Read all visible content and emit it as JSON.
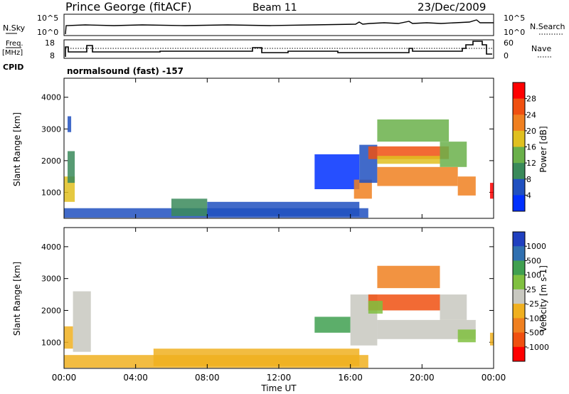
{
  "header": {
    "station": "Prince George (fitACF)",
    "beam": "Beam 11",
    "date": "23/Dec/2009"
  },
  "sky_panel": {
    "left_label": "N.Sky",
    "left_ticks": [
      "10^5",
      "10^0"
    ],
    "right_label": "N.Search",
    "right_ticks": [
      "10^5",
      "10^0"
    ]
  },
  "freq_panel": {
    "left_label_top": "Freq.",
    "left_label_bottom": "[MHz]",
    "left_ticks": [
      "18",
      "8"
    ],
    "right_label": "Nave",
    "right_ticks": [
      "60",
      "0"
    ],
    "cpid_label": "CPID",
    "cpid_text": "normalsound (fast) -157"
  },
  "chart_data": [
    {
      "type": "heatmap",
      "name": "power",
      "ylabel": "Slant Range [km]",
      "yticks": [
        1000,
        2000,
        3000,
        4000
      ],
      "ylim": [
        180,
        4600
      ],
      "xlim": [
        0,
        24
      ],
      "colorbar": {
        "label": "Power [dB]",
        "ticks": [
          "4",
          "8",
          "12",
          "16",
          "20",
          "24",
          "28"
        ],
        "colors": [
          "#0030ff",
          "#2050c0",
          "#3a8a5a",
          "#6ab04a",
          "#e0c020",
          "#f08020",
          "#f05010",
          "#ff0000"
        ]
      },
      "patches": [
        {
          "t0": 0.0,
          "t1": 0.6,
          "r0": 700,
          "r1": 1500,
          "level": 4
        },
        {
          "t0": 0.2,
          "t1": 0.6,
          "r0": 1300,
          "r1": 2300,
          "level": 2
        },
        {
          "t0": 0.2,
          "t1": 0.4,
          "r0": 2900,
          "r1": 3400,
          "level": 1
        },
        {
          "t0": 0.0,
          "t1": 17.0,
          "r0": 200,
          "r1": 500,
          "level": 1
        },
        {
          "t0": 6.0,
          "t1": 8.0,
          "r0": 250,
          "r1": 800,
          "level": 2
        },
        {
          "t0": 8.0,
          "t1": 16.5,
          "r0": 250,
          "r1": 700,
          "level": 1
        },
        {
          "t0": 14.0,
          "t1": 16.5,
          "r0": 1100,
          "r1": 2200,
          "level": 0
        },
        {
          "t0": 16.2,
          "t1": 17.2,
          "r0": 800,
          "r1": 1400,
          "level": 5
        },
        {
          "t0": 16.5,
          "t1": 17.5,
          "r0": 1300,
          "r1": 2500,
          "level": 1
        },
        {
          "t0": 17.0,
          "t1": 21.5,
          "r0": 2050,
          "r1": 2450,
          "level": 6
        },
        {
          "t0": 17.5,
          "t1": 21.0,
          "r0": 1900,
          "r1": 2150,
          "level": 4
        },
        {
          "t0": 17.5,
          "t1": 22.0,
          "r0": 1200,
          "r1": 1800,
          "level": 5
        },
        {
          "t0": 17.5,
          "t1": 21.5,
          "r0": 2600,
          "r1": 3300,
          "level": 3
        },
        {
          "t0": 21.0,
          "t1": 22.5,
          "r0": 1800,
          "r1": 2600,
          "level": 3
        },
        {
          "t0": 22.0,
          "t1": 23.0,
          "r0": 900,
          "r1": 1500,
          "level": 5
        },
        {
          "t0": 23.8,
          "t1": 24.0,
          "r0": 800,
          "r1": 1300,
          "level": 7
        }
      ]
    },
    {
      "type": "heatmap",
      "name": "velocity",
      "ylabel": "Slant Range [km]",
      "xlabel": "Time UT",
      "yticks": [
        1000,
        2000,
        3000,
        4000
      ],
      "ylim": [
        180,
        4600
      ],
      "xlim": [
        0,
        24
      ],
      "xticks": [
        "00:00",
        "04:00",
        "08:00",
        "12:00",
        "16:00",
        "20:00",
        "00:00"
      ],
      "colorbar": {
        "label": "Velocity [m s-1]",
        "ticks": [
          "1000",
          "500",
          "100",
          "25",
          "-25",
          "-100",
          "-500",
          "-1000"
        ],
        "colors": [
          "#2040c0",
          "#3070b0",
          "#40a050",
          "#80c040",
          "#c8c8c0",
          "#f0b020",
          "#f08020",
          "#f05010",
          "#ff0000"
        ]
      },
      "patches": [
        {
          "t0": 0.0,
          "t1": 0.5,
          "r0": 800,
          "r1": 1500,
          "level": 5
        },
        {
          "t0": 0.5,
          "t1": 1.5,
          "r0": 700,
          "r1": 2600,
          "level": 4
        },
        {
          "t0": 0.0,
          "t1": 17.0,
          "r0": 200,
          "r1": 600,
          "level": 5
        },
        {
          "t0": 5.0,
          "t1": 16.5,
          "r0": 250,
          "r1": 800,
          "level": 5
        },
        {
          "t0": 14.0,
          "t1": 16.0,
          "r0": 1300,
          "r1": 1800,
          "level": 2
        },
        {
          "t0": 16.0,
          "t1": 17.5,
          "r0": 900,
          "r1": 2500,
          "level": 4
        },
        {
          "t0": 17.0,
          "t1": 21.0,
          "r0": 2000,
          "r1": 2500,
          "level": 7
        },
        {
          "t0": 17.0,
          "t1": 17.8,
          "r0": 1900,
          "r1": 2300,
          "level": 3
        },
        {
          "t0": 17.5,
          "t1": 21.0,
          "r0": 2700,
          "r1": 3400,
          "level": 6
        },
        {
          "t0": 17.5,
          "t1": 23.0,
          "r0": 1100,
          "r1": 1700,
          "level": 4
        },
        {
          "t0": 21.0,
          "t1": 22.5,
          "r0": 1700,
          "r1": 2500,
          "level": 4
        },
        {
          "t0": 22.0,
          "t1": 23.0,
          "r0": 1000,
          "r1": 1400,
          "level": 3
        },
        {
          "t0": 23.8,
          "t1": 24.0,
          "r0": 900,
          "r1": 1300,
          "level": 5
        }
      ]
    }
  ]
}
